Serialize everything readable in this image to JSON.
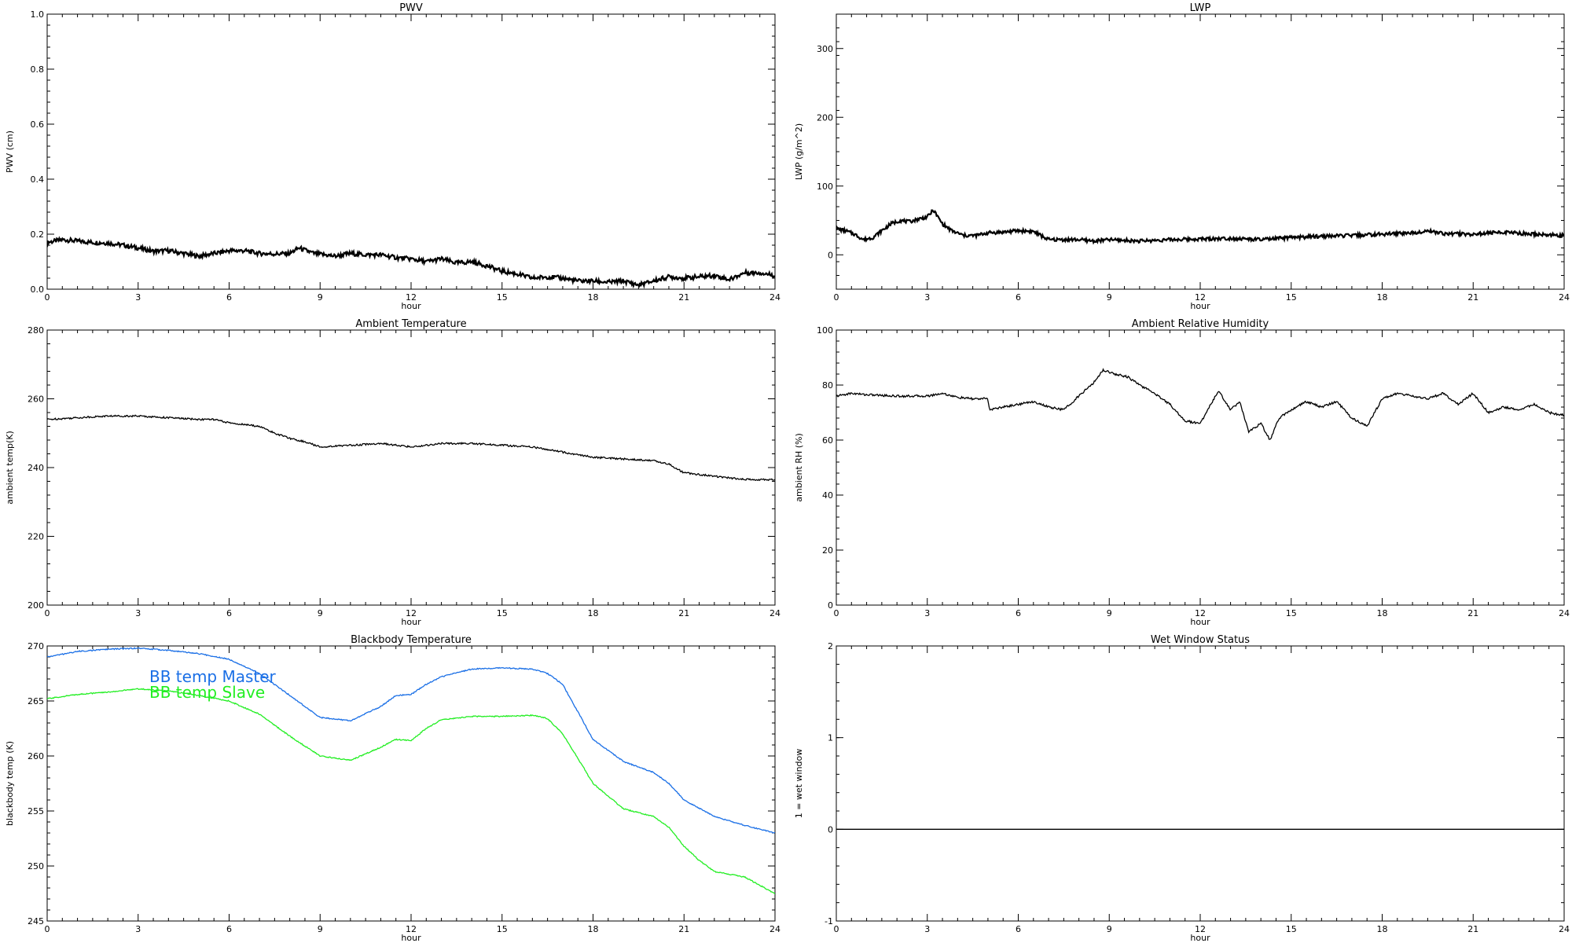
{
  "chart_data": [
    {
      "type": "line",
      "title": "PWV",
      "xlabel": "hour",
      "ylabel": "PWV (cm)",
      "xlim": [
        0,
        24
      ],
      "ylim": [
        0,
        1.0
      ],
      "xticks": [
        0,
        3,
        6,
        9,
        12,
        15,
        18,
        21,
        24
      ],
      "yticks": [
        "0.0",
        "0.2",
        "0.4",
        "0.6",
        "0.8",
        "1.0"
      ],
      "line_color": "#000000",
      "noise": 0.008,
      "series": [
        {
          "x": [
            0,
            0.5,
            1,
            1.5,
            2,
            2.5,
            3,
            3.5,
            4,
            4.5,
            5,
            5.5,
            6,
            6.5,
            7,
            7.5,
            8,
            8.3,
            8.8,
            9.5,
            10,
            10.5,
            11,
            11.5,
            12,
            12.5,
            13,
            13.5,
            14,
            14.5,
            15,
            15.5,
            16,
            16.5,
            17,
            17.5,
            18,
            18.5,
            19,
            19.5,
            20,
            20.5,
            21,
            21.5,
            22,
            22.5,
            23,
            23.5,
            24
          ],
          "y": [
            0.17,
            0.18,
            0.175,
            0.17,
            0.168,
            0.16,
            0.15,
            0.138,
            0.14,
            0.13,
            0.12,
            0.13,
            0.14,
            0.14,
            0.13,
            0.128,
            0.13,
            0.15,
            0.13,
            0.12,
            0.13,
            0.125,
            0.125,
            0.115,
            0.11,
            0.1,
            0.11,
            0.095,
            0.1,
            0.085,
            0.065,
            0.055,
            0.04,
            0.045,
            0.04,
            0.03,
            0.03,
            0.025,
            0.03,
            0.015,
            0.03,
            0.045,
            0.04,
            0.045,
            0.05,
            0.035,
            0.06,
            0.06,
            0.05
          ]
        }
      ]
    },
    {
      "type": "line",
      "title": "LWP",
      "xlabel": "hour",
      "ylabel": "LWP (g/m^2)",
      "xlim": [
        0,
        24
      ],
      "ylim": [
        -50,
        350
      ],
      "xticks": [
        0,
        3,
        6,
        9,
        12,
        15,
        18,
        21,
        24
      ],
      "yticks": [
        "0",
        "100",
        "200",
        "300"
      ],
      "line_color": "#000000",
      "noise": 2.5,
      "series": [
        {
          "x": [
            0,
            0.3,
            0.6,
            0.9,
            1.2,
            1.5,
            1.8,
            2.1,
            2.4,
            2.7,
            3.0,
            3.2,
            3.5,
            3.8,
            4.2,
            4.6,
            5.0,
            5.5,
            6.0,
            6.5,
            7.0,
            7.5,
            8.0,
            8.5,
            9.0,
            10.0,
            11.0,
            12.0,
            13.0,
            14.0,
            15.0,
            16.0,
            17.0,
            18.0,
            19.0,
            19.5,
            20.0,
            21.0,
            22.0,
            23.0,
            24.0
          ],
          "y": [
            38,
            35,
            30,
            22,
            25,
            35,
            45,
            50,
            48,
            52,
            55,
            65,
            45,
            35,
            28,
            28,
            32,
            33,
            35,
            34,
            22,
            22,
            22,
            20,
            22,
            20,
            22,
            23,
            24,
            22,
            25,
            27,
            28,
            30,
            32,
            35,
            31,
            30,
            33,
            30,
            28
          ]
        }
      ]
    },
    {
      "type": "line",
      "title": "Ambient Temperature",
      "xlabel": "hour",
      "ylabel": "ambient temp(K)",
      "xlim": [
        0,
        24
      ],
      "ylim": [
        200,
        280
      ],
      "xticks": [
        0,
        3,
        6,
        9,
        12,
        15,
        18,
        21,
        24
      ],
      "yticks": [
        "200",
        "220",
        "240",
        "260",
        "280"
      ],
      "line_color": "#000000",
      "noise": 0.25,
      "series": [
        {
          "x": [
            0,
            1,
            2,
            3,
            4,
            5,
            5.5,
            6,
            6.5,
            7,
            7.5,
            8,
            8.5,
            9,
            10,
            11,
            12,
            13,
            14,
            15,
            16,
            17,
            18,
            19,
            20,
            20.5,
            21,
            22,
            23,
            24
          ],
          "y": [
            254,
            254.5,
            255,
            255,
            254.5,
            254,
            254,
            253,
            252.5,
            252,
            250,
            248.5,
            247.5,
            246,
            246.5,
            247,
            246,
            247,
            247,
            246.5,
            246,
            244.5,
            243,
            242.5,
            242,
            241,
            238.5,
            237.5,
            236.5,
            236.5
          ]
        }
      ]
    },
    {
      "type": "line",
      "title": "Ambient Relative Humidity",
      "xlabel": "hour",
      "ylabel": "ambient RH (%)",
      "xlim": [
        0,
        24
      ],
      "ylim": [
        0,
        100
      ],
      "xticks": [
        0,
        3,
        6,
        9,
        12,
        15,
        18,
        21,
        24
      ],
      "yticks": [
        "0",
        "20",
        "40",
        "60",
        "80",
        "100"
      ],
      "line_color": "#000000",
      "noise": 0.4,
      "series": [
        {
          "x": [
            0,
            0.5,
            1,
            2,
            3,
            3.5,
            4,
            4.5,
            5.0,
            5.05,
            5.5,
            6,
            6.5,
            7,
            7.5,
            8,
            8.5,
            8.8,
            9.2,
            9.6,
            10,
            10.5,
            11,
            11.5,
            12,
            12.3,
            12.6,
            13,
            13.3,
            13.6,
            14,
            14.3,
            14.6,
            15,
            15.5,
            16,
            16.5,
            17,
            17.5,
            18,
            18.5,
            19,
            19.5,
            20,
            20.5,
            21,
            21.5,
            22,
            22.5,
            23,
            23.5,
            24
          ],
          "y": [
            76,
            77,
            76.5,
            76,
            76,
            77,
            75.5,
            75,
            75,
            71,
            72,
            73,
            74,
            72,
            71,
            76,
            81,
            85.5,
            84,
            83,
            80,
            77,
            73,
            67,
            66,
            72,
            78,
            71,
            74,
            63,
            66,
            60,
            68,
            71,
            74,
            72,
            74,
            68,
            65,
            75,
            77,
            76,
            75,
            77,
            73,
            77,
            70,
            72,
            71,
            73,
            70,
            69
          ]
        }
      ]
    },
    {
      "type": "line",
      "title": "Blackbody Temperature",
      "xlabel": "hour",
      "ylabel": "blackbody temp (K)",
      "xlim": [
        0,
        24
      ],
      "ylim": [
        245,
        270
      ],
      "xticks": [
        0,
        3,
        6,
        9,
        12,
        15,
        18,
        21,
        24
      ],
      "yticks": [
        "245",
        "250",
        "255",
        "260",
        "265",
        "270"
      ],
      "noise": 0.05,
      "series": [
        {
          "name": "BB temp Master",
          "color": "#1a6fe6",
          "x": [
            0,
            1,
            2,
            3,
            4,
            5,
            6,
            7,
            8,
            9,
            10,
            11,
            11.5,
            12,
            12.5,
            13,
            14,
            15,
            16,
            16.5,
            17,
            17.5,
            18,
            19,
            20,
            20.5,
            21,
            22,
            23,
            24
          ],
          "y": [
            269,
            269.5,
            269.7,
            269.8,
            269.6,
            269.3,
            268.8,
            267.5,
            265.5,
            263.5,
            263.2,
            264.5,
            265.5,
            265.6,
            266.5,
            267.2,
            267.9,
            268,
            267.9,
            267.5,
            266.5,
            264,
            261.5,
            259.5,
            258.5,
            257.5,
            256,
            254.5,
            253.7,
            253
          ]
        },
        {
          "name": "BB temp Slave",
          "color": "#22ee22",
          "x": [
            0,
            1,
            2,
            3,
            4,
            5,
            6,
            7,
            8,
            9,
            10,
            11,
            11.5,
            12,
            12.5,
            13,
            14,
            15,
            16,
            16.5,
            17,
            17.5,
            18,
            19,
            20,
            20.5,
            21,
            21.5,
            22,
            23,
            24
          ],
          "y": [
            265.2,
            265.6,
            265.8,
            266.1,
            265.9,
            265.5,
            265,
            263.8,
            261.8,
            260,
            259.6,
            260.8,
            261.5,
            261.4,
            262.5,
            263.3,
            263.6,
            263.6,
            263.7,
            263.4,
            262,
            259.8,
            257.5,
            255.2,
            254.5,
            253.5,
            251.8,
            250.5,
            249.5,
            249,
            247.5
          ]
        }
      ],
      "legend": [
        "BB temp Master",
        "BB temp Slave"
      ]
    },
    {
      "type": "line",
      "title": "Wet Window Status",
      "xlabel": "hour",
      "ylabel": "1 = wet window",
      "xlim": [
        0,
        24
      ],
      "ylim": [
        -1,
        2
      ],
      "xticks": [
        0,
        3,
        6,
        9,
        12,
        15,
        18,
        21,
        24
      ],
      "yticks": [
        "-1",
        "0",
        "1",
        "2"
      ],
      "line_color": "#000000",
      "noise": 0,
      "series": [
        {
          "x": [
            0,
            24
          ],
          "y": [
            0,
            0
          ]
        }
      ]
    }
  ]
}
